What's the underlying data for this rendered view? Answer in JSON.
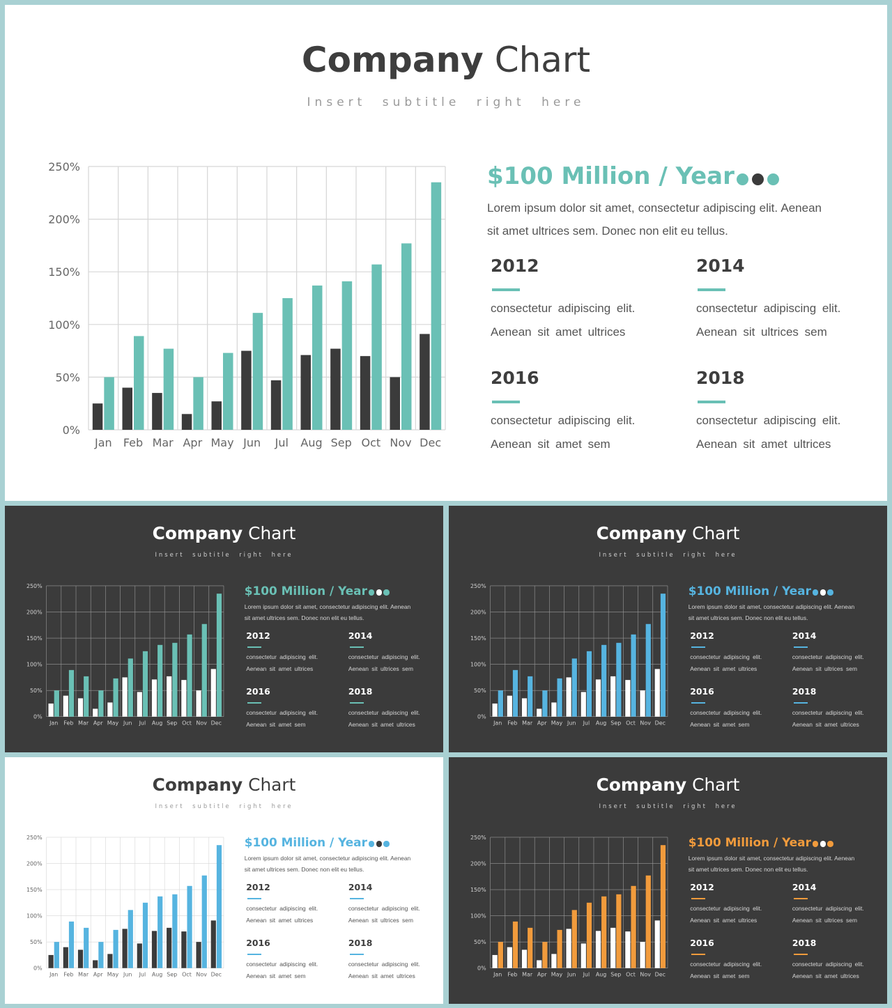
{
  "slides": [
    {
      "theme": "light",
      "title_bold": "Company",
      "title_regular": "Chart",
      "subtitle": "Insert subtitle right here",
      "headline": "$100 Million / Year",
      "headline_color": "#6ac0b5",
      "body_text": "Lorem ipsum dolor sit amet, consectetur adipiscing elit. Aenean sit amet ultrices sem. Donec non elit eu tellus.",
      "dots": [
        "#6ac0b5",
        "#3b3b3b",
        "#6ac0b5"
      ],
      "blocks": [
        {
          "year": "2012",
          "line1": "consectetur adipiscing elit.",
          "line2": "Aenean sit amet ultrices"
        },
        {
          "year": "2014",
          "line1": "consectetur adipiscing elit.",
          "line2": "Aenean sit ultrices sem"
        },
        {
          "year": "2016",
          "line1": "consectetur adipiscing elit.",
          "line2": "Aenean sit amet sem"
        },
        {
          "year": "2018",
          "line1": "consectetur adipiscing elit.",
          "line2": "Aenean sit amet ultrices"
        }
      ],
      "colors": {
        "series1": "#3b3b3b",
        "series2": "#6ac0b5",
        "accent": "#6ac0b5"
      }
    },
    {
      "theme": "dark",
      "title_bold": "Company",
      "title_regular": "Chart",
      "subtitle": "Insert subtitle right here",
      "headline": "$100 Million / Year",
      "headline_color": "#6ac0b5",
      "body_text": "Lorem ipsum dolor sit amet, consectetur adipiscing elit. Aenean sit amet ultrices sem. Donec non elit eu tellus.",
      "dots": [
        "#6ac0b5",
        "#ffffff",
        "#6ac0b5"
      ],
      "blocks": [
        {
          "year": "2012",
          "line1": "consectetur adipiscing elit.",
          "line2": "Aenean sit amet ultrices"
        },
        {
          "year": "2014",
          "line1": "consectetur adipiscing elit.",
          "line2": "Aenean sit ultrices sem"
        },
        {
          "year": "2016",
          "line1": "consectetur adipiscing elit.",
          "line2": "Aenean sit amet sem"
        },
        {
          "year": "2018",
          "line1": "consectetur adipiscing elit.",
          "line2": "Aenean sit amet ultrices"
        }
      ],
      "colors": {
        "series1": "#ffffff",
        "series2": "#6ac0b5",
        "accent": "#6ac0b5"
      }
    },
    {
      "theme": "dark",
      "title_bold": "Company",
      "title_regular": "Chart",
      "subtitle": "Insert subtitle right here",
      "headline": "$100 Million / Year",
      "headline_color": "#56b4e0",
      "body_text": "Lorem ipsum dolor sit amet, consectetur adipiscing elit. Aenean sit amet ultrices sem. Donec non elit eu tellus.",
      "dots": [
        "#56b4e0",
        "#ffffff",
        "#56b4e0"
      ],
      "blocks": [
        {
          "year": "2012",
          "line1": "consectetur adipiscing elit.",
          "line2": "Aenean sit amet ultrices"
        },
        {
          "year": "2014",
          "line1": "consectetur adipiscing elit.",
          "line2": "Aenean sit ultrices sem"
        },
        {
          "year": "2016",
          "line1": "consectetur adipiscing elit.",
          "line2": "Aenean sit amet sem"
        },
        {
          "year": "2018",
          "line1": "consectetur adipiscing elit.",
          "line2": "Aenean sit amet ultrices"
        }
      ],
      "colors": {
        "series1": "#ffffff",
        "series2": "#56b4e0",
        "accent": "#56b4e0"
      }
    },
    {
      "theme": "light",
      "title_bold": "Company",
      "title_regular": "Chart",
      "subtitle": "Insert subtitle right here",
      "headline": "$100 Million / Year",
      "headline_color": "#56b4e0",
      "body_text": "Lorem ipsum dolor sit amet, consectetur adipiscing elit. Aenean sit amet ultrices sem. Donec non elit eu tellus.",
      "dots": [
        "#56b4e0",
        "#3b3b3b",
        "#56b4e0"
      ],
      "blocks": [
        {
          "year": "2012",
          "line1": "consectetur adipiscing elit.",
          "line2": "Aenean sit amet ultrices"
        },
        {
          "year": "2014",
          "line1": "consectetur adipiscing elit.",
          "line2": "Aenean sit ultrices sem"
        },
        {
          "year": "2016",
          "line1": "consectetur adipiscing elit.",
          "line2": "Aenean sit amet sem"
        },
        {
          "year": "2018",
          "line1": "consectetur adipiscing elit.",
          "line2": "Aenean sit amet ultrices"
        }
      ],
      "colors": {
        "series1": "#3b3b3b",
        "series2": "#56b4e0",
        "accent": "#56b4e0"
      }
    },
    {
      "theme": "dark",
      "title_bold": "Company",
      "title_regular": "Chart",
      "subtitle": "Insert subtitle right here",
      "headline": "$100 Million / Year",
      "headline_color": "#f19b3c",
      "body_text": "Lorem ipsum dolor sit amet, consectetur adipiscing elit. Aenean sit amet ultrices sem. Donec non elit eu tellus.",
      "dots": [
        "#f19b3c",
        "#ffffff",
        "#f19b3c"
      ],
      "blocks": [
        {
          "year": "2012",
          "line1": "consectetur adipiscing elit.",
          "line2": "Aenean sit amet ultrices"
        },
        {
          "year": "2014",
          "line1": "consectetur adipiscing elit.",
          "line2": "Aenean sit ultrices sem"
        },
        {
          "year": "2016",
          "line1": "consectetur adipiscing elit.",
          "line2": "Aenean sit amet sem"
        },
        {
          "year": "2018",
          "line1": "consectetur adipiscing elit.",
          "line2": "Aenean sit amet ultrices"
        }
      ],
      "colors": {
        "series1": "#ffffff",
        "series2": "#f19b3c",
        "accent": "#f19b3c"
      }
    }
  ],
  "chart_data": {
    "type": "bar",
    "categories": [
      "Jan",
      "Feb",
      "Mar",
      "Apr",
      "May",
      "Jun",
      "Jul",
      "Aug",
      "Sep",
      "Oct",
      "Nov",
      "Dec"
    ],
    "series": [
      {
        "values": [
          25,
          40,
          35,
          15,
          27,
          75,
          47,
          71,
          77,
          70,
          50,
          91
        ]
      },
      {
        "values": [
          50,
          89,
          77,
          50,
          73,
          111,
          125,
          137,
          141,
          157,
          177,
          235
        ]
      }
    ],
    "ylim": [
      0,
      250
    ],
    "yticks": [
      0,
      50,
      100,
      150,
      200,
      250
    ],
    "ytick_labels": [
      "0%",
      "50%",
      "100%",
      "150%",
      "200%",
      "250%"
    ],
    "xlabel": "",
    "ylabel": "",
    "grid": true,
    "legend": "none"
  }
}
